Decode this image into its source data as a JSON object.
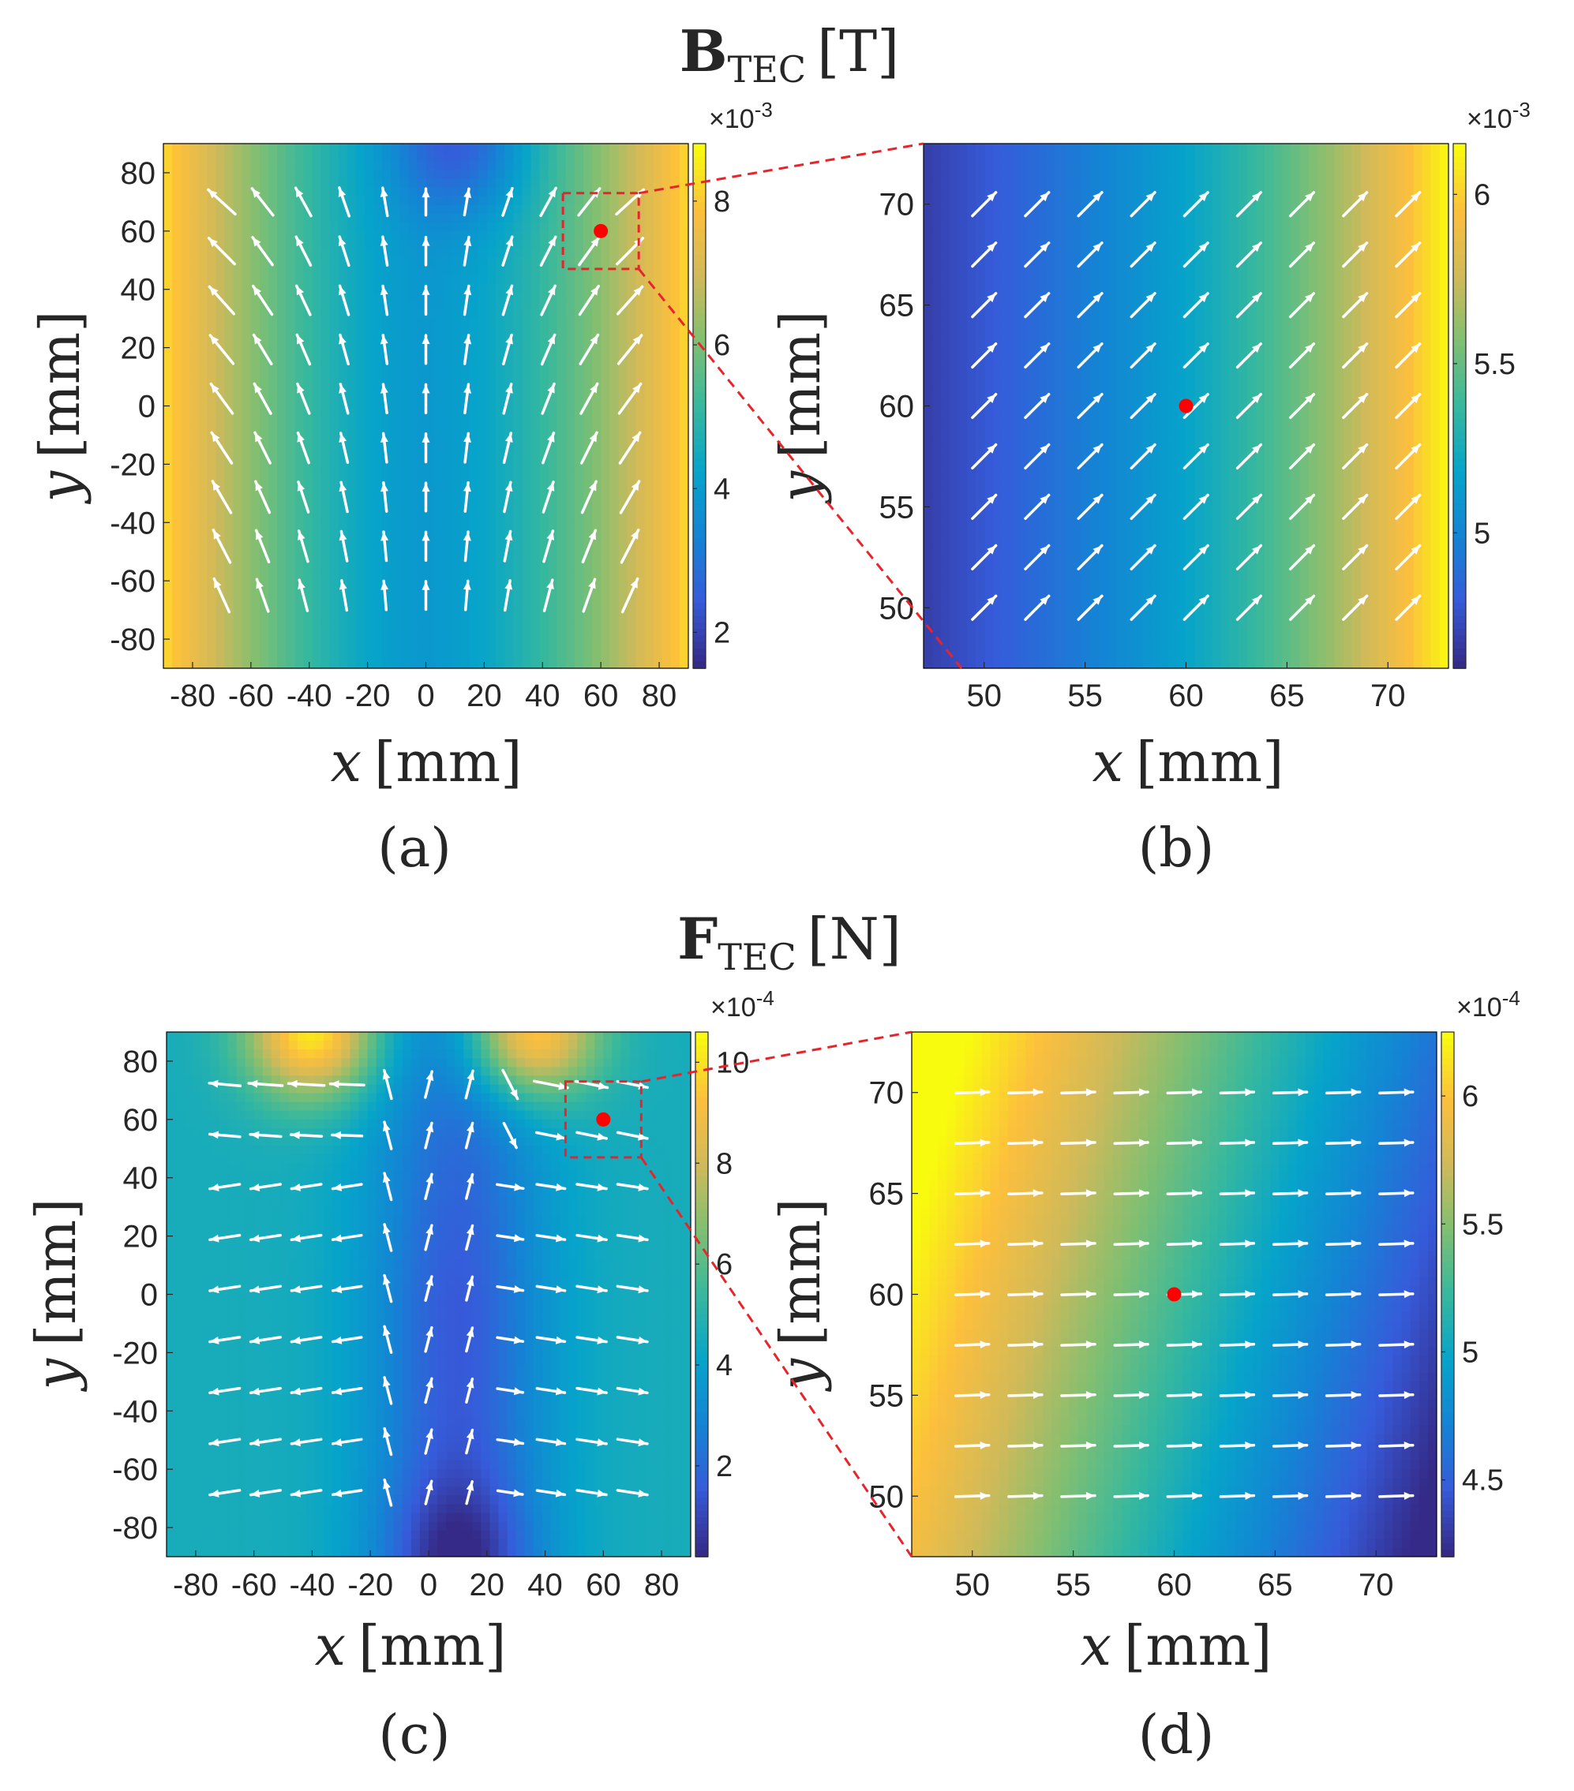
{
  "figure": {
    "rows": [
      {
        "title_symbol": "B",
        "title_sub": "TEC",
        "title_unit": "[T]"
      },
      {
        "title_symbol": "F",
        "title_sub": "TEC",
        "title_unit": "[N]"
      }
    ]
  },
  "chart_data": [
    {
      "type": "heatmap",
      "panel": "(a)",
      "field": "B_TEC",
      "colormap": "parula",
      "xlabel_var": "x",
      "xlabel_unit": "[mm]",
      "ylabel_var": "y",
      "ylabel_unit": "[mm]",
      "xlim": [
        -90,
        90
      ],
      "ylim": [
        -90,
        90
      ],
      "xticks": [
        -80,
        -60,
        -40,
        -20,
        0,
        20,
        40,
        60,
        80
      ],
      "xticklabels": [
        "-80",
        "-60",
        "-40",
        "-20",
        "0",
        "20",
        "40",
        "60",
        "80"
      ],
      "yticks": [
        80,
        60,
        40,
        20,
        0,
        -20,
        -40,
        -60,
        -80
      ],
      "yticklabels": [
        "80",
        "60",
        "40",
        "20",
        "0",
        "-20",
        "-40",
        "-60",
        "-80"
      ],
      "colorbar": {
        "min": 1.5,
        "max": 8.8,
        "ticks": [
          2,
          4,
          6,
          8
        ],
        "ticklabels": [
          "2",
          "4",
          "6",
          "8"
        ],
        "exponent_prefix": "×10",
        "exponent": "-3"
      },
      "zoom_box": {
        "x": [
          47,
          73
        ],
        "y": [
          47,
          73
        ]
      },
      "marker": {
        "x": 60,
        "y": 60,
        "color": "#ff0000"
      },
      "arrow_grid": {
        "x_from": -70,
        "x_to": 70,
        "nx": 11,
        "y_from": -65,
        "y_to": 70,
        "ny": 9
      },
      "field_model": "dipole_b_wide",
      "label": "(a)"
    },
    {
      "type": "heatmap",
      "panel": "(b)",
      "field": "B_TEC",
      "colormap": "parula",
      "xlabel_var": "x",
      "xlabel_unit": "[mm]",
      "ylabel_var": "y",
      "ylabel_unit": "[mm]",
      "xlim": [
        47,
        73
      ],
      "ylim": [
        47,
        73
      ],
      "xticks": [
        50,
        55,
        60,
        65,
        70
      ],
      "xticklabels": [
        "50",
        "55",
        "60",
        "65",
        "70"
      ],
      "yticks": [
        70,
        65,
        60,
        55,
        50
      ],
      "yticklabels": [
        "70",
        "65",
        "60",
        "55",
        "50"
      ],
      "colorbar": {
        "min": 4.6,
        "max": 6.15,
        "ticks": [
          5,
          5.5,
          6
        ],
        "ticklabels": [
          "5",
          "5.5",
          "6"
        ],
        "exponent_prefix": "×10",
        "exponent": "-3"
      },
      "marker": {
        "x": 60,
        "y": 60,
        "color": "#ff0000"
      },
      "arrow_grid": {
        "x_from": 50,
        "x_to": 71,
        "nx": 9,
        "y_from": 50,
        "y_to": 70,
        "ny": 9
      },
      "field_model": "b_zoom",
      "label": "(b)"
    },
    {
      "type": "heatmap",
      "panel": "(c)",
      "field": "F_TEC",
      "colormap": "parula",
      "xlabel_var": "x",
      "xlabel_unit": "[mm]",
      "ylabel_var": "y",
      "ylabel_unit": "[mm]",
      "xlim": [
        -90,
        90
      ],
      "ylim": [
        -90,
        90
      ],
      "xticks": [
        -80,
        -60,
        -40,
        -20,
        0,
        20,
        40,
        60,
        80
      ],
      "xticklabels": [
        "-80",
        "-60",
        "-40",
        "-20",
        "0",
        "20",
        "40",
        "60",
        "80"
      ],
      "yticks": [
        80,
        60,
        40,
        20,
        0,
        -20,
        -40,
        -60,
        -80
      ],
      "yticklabels": [
        "80",
        "60",
        "40",
        "20",
        "0",
        "-20",
        "-40",
        "-60",
        "-80"
      ],
      "colorbar": {
        "min": 0.2,
        "max": 10.6,
        "ticks": [
          2,
          4,
          6,
          8,
          10
        ],
        "ticklabels": [
          "2",
          "4",
          "6",
          "8",
          "10"
        ],
        "exponent_prefix": "×10",
        "exponent": "-4"
      },
      "zoom_box": {
        "x": [
          47,
          73
        ],
        "y": [
          47,
          73
        ]
      },
      "marker": {
        "x": 60,
        "y": 60,
        "color": "#ff0000"
      },
      "arrow_grid": {
        "x_from": -70,
        "x_to": 70,
        "nx": 11,
        "y_from": -68,
        "y_to": 72,
        "ny": 9
      },
      "field_model": "force_wide",
      "label": "(c)"
    },
    {
      "type": "heatmap",
      "panel": "(d)",
      "field": "F_TEC",
      "colormap": "parula",
      "xlabel_var": "x",
      "xlabel_unit": "[mm]",
      "ylabel_var": "y",
      "ylabel_unit": "[mm]",
      "xlim": [
        47,
        73
      ],
      "ylim": [
        47,
        73
      ],
      "xticks": [
        50,
        55,
        60,
        65,
        70
      ],
      "xticklabels": [
        "50",
        "55",
        "60",
        "65",
        "70"
      ],
      "yticks": [
        70,
        65,
        60,
        55,
        50
      ],
      "yticklabels": [
        "70",
        "65",
        "60",
        "55",
        "50"
      ],
      "colorbar": {
        "min": 4.2,
        "max": 6.25,
        "ticks": [
          4.5,
          5,
          5.5,
          6
        ],
        "ticklabels": [
          "4.5",
          "5",
          "5.5",
          "6"
        ],
        "exponent_prefix": "×10",
        "exponent": "-4"
      },
      "marker": {
        "x": 60,
        "y": 60,
        "color": "#ff0000"
      },
      "arrow_grid": {
        "x_from": 50,
        "x_to": 71,
        "nx": 9,
        "y_from": 50,
        "y_to": 70,
        "ny": 9
      },
      "field_model": "f_zoom",
      "label": "(d)"
    }
  ]
}
